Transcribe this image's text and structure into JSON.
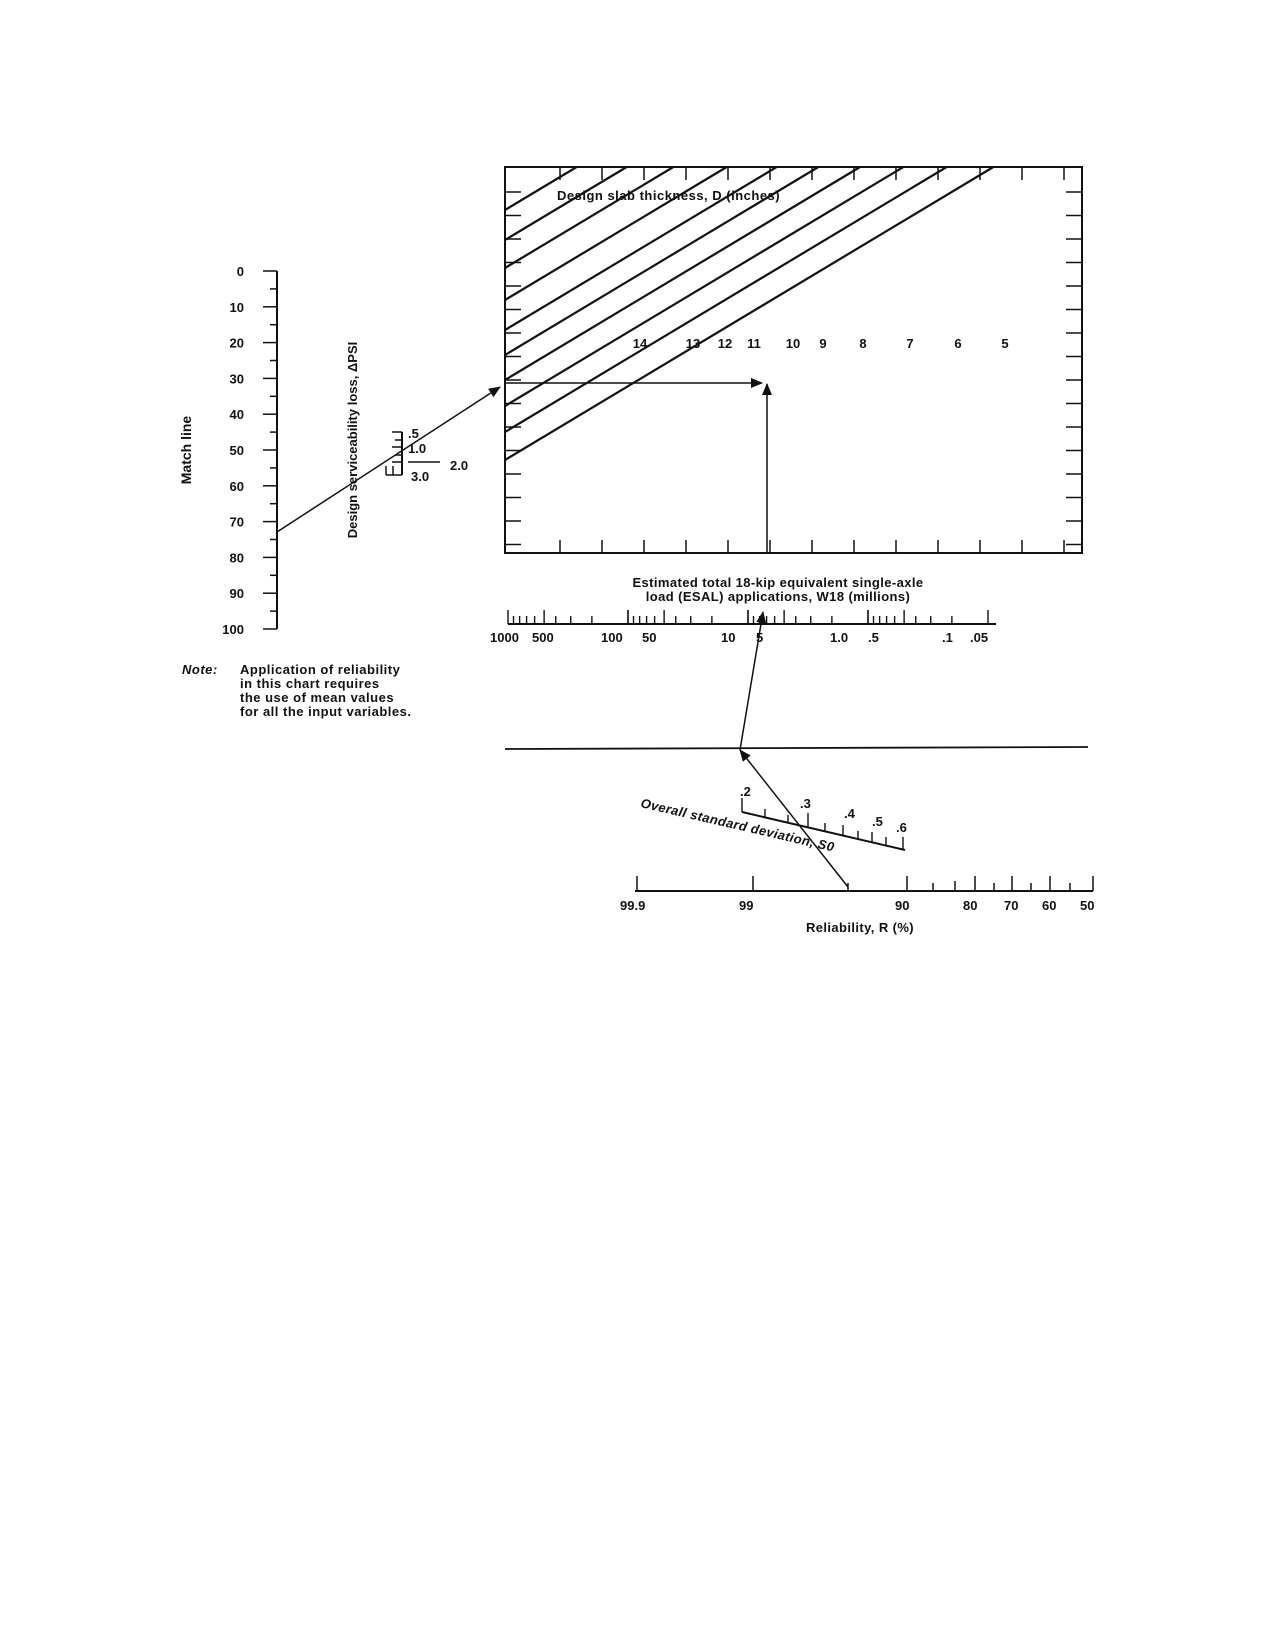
{
  "chart_data": {
    "type": "nomograph",
    "title": "Design slab thickness, D (inches)",
    "match_line": {
      "label": "Match line",
      "ticks": [
        "0",
        "10",
        "20",
        "30",
        "40",
        "50",
        "60",
        "70",
        "80",
        "90",
        "100"
      ]
    },
    "serviceability": {
      "label": "Design serviceability loss, ΔPSI",
      "ticks": [
        ".5",
        "1.0",
        "2.0",
        "3.0"
      ]
    },
    "thickness_lines": [
      "14",
      "13",
      "12",
      "11",
      "10",
      "9",
      "8",
      "7",
      "6",
      "5"
    ],
    "esal": {
      "label_line1": "Estimated total 18-kip equivalent single-axle",
      "label_line2": "load (ESAL) applications, W18 (millions)",
      "ticks": [
        "1000",
        "500",
        "100",
        "50",
        "10",
        "5",
        "1.0",
        ".5",
        ".1",
        ".05"
      ]
    },
    "std_dev": {
      "label": "Overall standard deviation, S0",
      "ticks": [
        ".2",
        ".3",
        ".4",
        ".5",
        ".6"
      ]
    },
    "reliability": {
      "label": "Reliability, R (%)",
      "ticks": [
        "99.9",
        "99",
        "90",
        "80",
        "70",
        "60",
        "50"
      ]
    },
    "example": {
      "reliability": 95,
      "std_dev": 0.35,
      "esal_millions": 5,
      "match_line": 74,
      "serviceability_loss": 1.7,
      "thickness": 11
    }
  },
  "note": {
    "lead": "Note:",
    "lines": [
      "Application of reliability",
      "in this chart requires",
      "the use of mean values",
      "for all the input variables."
    ]
  }
}
